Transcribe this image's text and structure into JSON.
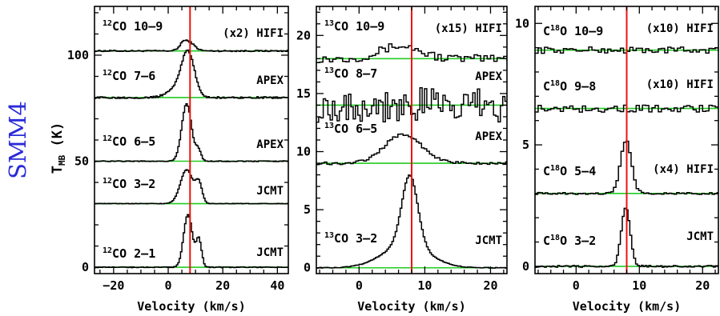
{
  "source_label": "SMM4",
  "y_axis_label": "T_MB (K)",
  "chart_data": [
    {
      "type": "line",
      "panel": "12CO",
      "xlabel": "Velocity (km/s)",
      "xlim": [
        -27,
        44
      ],
      "ylim": [
        -3,
        123
      ],
      "x_ticks": [
        -20,
        0,
        20,
        40
      ],
      "y_ticks": [
        0,
        50,
        100
      ],
      "y_tick_labels": [
        "0",
        "50",
        "100"
      ],
      "vlsr_marker": 8,
      "series": [
        {
          "iso": "12",
          "mol": "CO",
          "trans": "10–9",
          "note": "(x2) HIFI",
          "baseline": 102,
          "noise": 0.3,
          "step": 0.5,
          "base_curve": null,
          "components": [
            {
              "a": 4.5,
              "c": 7,
              "w": 2.2
            },
            {
              "a": 1.5,
              "c": 5,
              "w": 1.0
            }
          ]
        },
        {
          "iso": "12",
          "mol": "CO",
          "trans": "7–6",
          "note": "APEX",
          "baseline": 80,
          "noise": 0.4,
          "step": 0.5,
          "base_curve": null,
          "components": [
            {
              "a": 20,
              "c": 7,
              "w": 2.4
            },
            {
              "a": 4,
              "c": 3,
              "w": 3.5
            }
          ]
        },
        {
          "iso": "12",
          "mol": "CO",
          "trans": "6–5",
          "note": "APEX",
          "baseline": 50,
          "noise": 0.2,
          "step": 0.5,
          "base_curve": null,
          "components": [
            {
              "a": 27,
              "c": 6.5,
              "w": 1.8
            },
            {
              "a": 5,
              "c": 10.8,
              "w": 1.0
            }
          ]
        },
        {
          "iso": "12",
          "mol": "CO",
          "trans": "3–2",
          "note": "JCMT",
          "baseline": 30,
          "noise": 0.1,
          "step": 0.5,
          "base_curve": null,
          "components": [
            {
              "a": 16,
              "c": 6.5,
              "w": 2.3
            },
            {
              "a": 9,
              "c": 11,
              "w": 1.2
            }
          ]
        },
        {
          "iso": "12",
          "mol": "CO",
          "trans": "2–1",
          "note": "JCMT",
          "baseline": 0,
          "noise": 0.2,
          "step": 0.5,
          "base_curve": null,
          "components": [
            {
              "a": 25,
              "c": 7,
              "w": 1.6
            },
            {
              "a": 13,
              "c": 11,
              "w": 1.0
            }
          ]
        }
      ]
    },
    {
      "type": "line",
      "panel": "13CO",
      "xlabel": "Velocity (km/s)",
      "xlim": [
        -6.5,
        22.5
      ],
      "ylim": [
        -0.5,
        22.5
      ],
      "x_ticks": [
        0,
        10,
        20
      ],
      "y_ticks": [
        0,
        5,
        10,
        15,
        20
      ],
      "y_tick_labels": [
        "0",
        "5",
        "10",
        "15",
        "20"
      ],
      "vlsr_marker": 8,
      "series": [
        {
          "iso": "13",
          "mol": "CO",
          "trans": "10–9",
          "note": "(x15) HIFI",
          "baseline": 18,
          "noise": 0.35,
          "step": 0.5,
          "base_curve": null,
          "components": [
            {
              "a": 1.1,
              "c": 6,
              "w": 3.0
            }
          ]
        },
        {
          "iso": "13",
          "mol": "CO",
          "trans": "8–7",
          "note": "APEX",
          "baseline": 14,
          "noise": 1.5,
          "step": 0.35,
          "base_curve": null,
          "components": []
        },
        {
          "iso": "13",
          "mol": "CO",
          "trans": "6–5",
          "note": "APEX",
          "baseline": 9,
          "noise": 0.12,
          "step": 0.4,
          "base_curve": null,
          "components": [
            {
              "a": 2.5,
              "c": 6.5,
              "w": 2.8
            }
          ]
        },
        {
          "iso": "13",
          "mol": "CO",
          "trans": "3–2",
          "note": "JCMT",
          "baseline": 0,
          "noise": 0.03,
          "step": 0.25,
          "base_curve": null,
          "components": [
            {
              "a": 6.0,
              "c": 7.6,
              "w": 1.2
            },
            {
              "a": 2.0,
              "c": 7.0,
              "w": 3.5
            }
          ]
        }
      ]
    },
    {
      "type": "line",
      "panel": "C18O",
      "xlabel": "Velocity (km/s)",
      "xlim": [
        -6.5,
        22.5
      ],
      "ylim": [
        -0.3,
        10.7
      ],
      "x_ticks": [
        0,
        10,
        20
      ],
      "y_ticks": [
        0,
        5,
        10
      ],
      "y_tick_labels": [
        "0",
        "5",
        "10"
      ],
      "vlsr_marker": 8,
      "series": [
        {
          "iso": "18",
          "mol": "O",
          "prefix": "C",
          "trans": "10–9",
          "note": "(x10) HIFI",
          "baseline": 8.9,
          "noise": 0.13,
          "step": 0.5,
          "base_curve": null,
          "components": []
        },
        {
          "iso": "18",
          "mol": "O",
          "prefix": "C",
          "trans": "9–8",
          "note": "(x10) HIFI",
          "baseline": 6.5,
          "noise": 0.15,
          "step": 0.5,
          "base_curve": null,
          "components": []
        },
        {
          "iso": "18",
          "mol": "O",
          "prefix": "C",
          "trans": "5–4",
          "note": "(x4) HIFI",
          "baseline": 3.0,
          "noise": 0.04,
          "step": 0.4,
          "base_curve": null,
          "components": [
            {
              "a": 2.2,
              "c": 7.7,
              "w": 0.85
            }
          ]
        },
        {
          "iso": "18",
          "mol": "O",
          "prefix": "C",
          "trans": "3–2",
          "note": "JCMT",
          "baseline": 0.0,
          "noise": 0.04,
          "step": 0.3,
          "base_curve": null,
          "components": [
            {
              "a": 2.4,
              "c": 7.7,
              "w": 0.7
            }
          ]
        }
      ]
    }
  ]
}
